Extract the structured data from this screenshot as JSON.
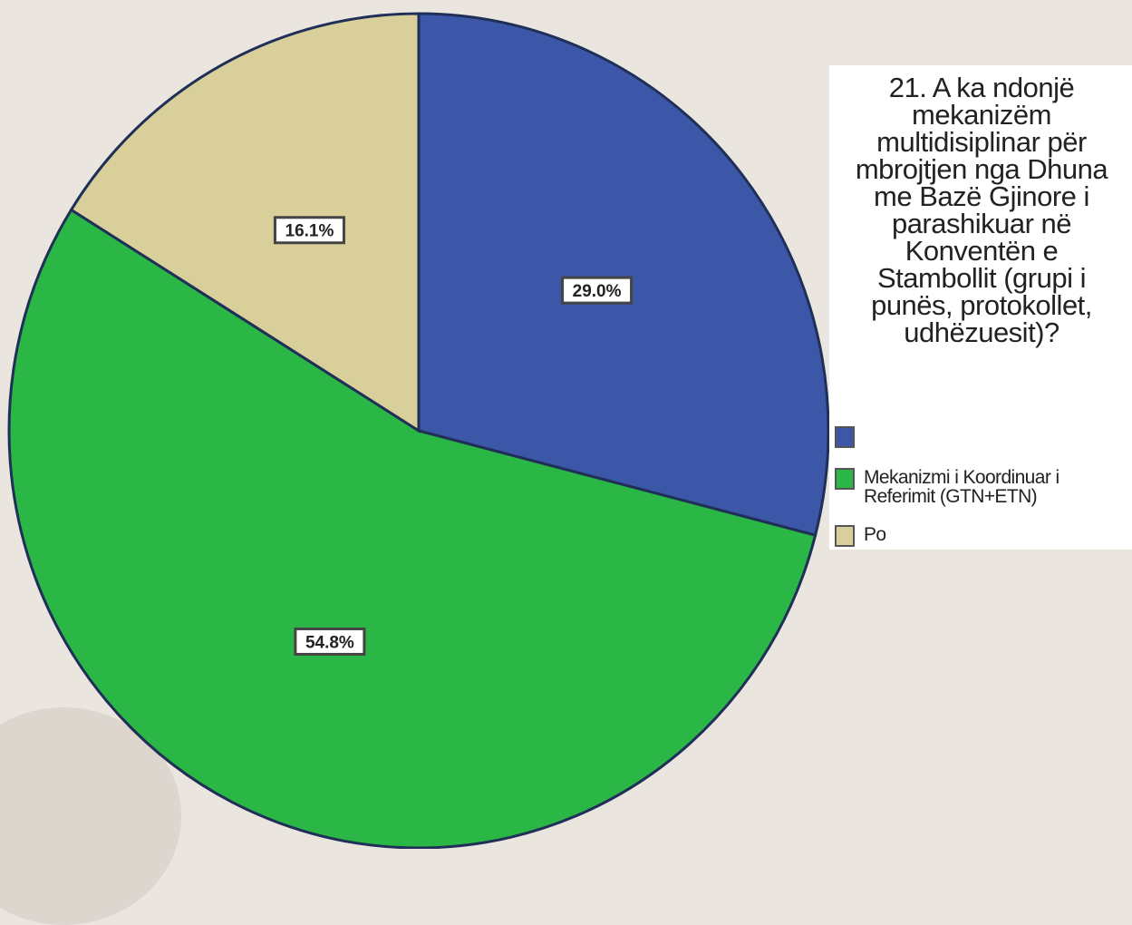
{
  "chart_data": {
    "type": "pie",
    "title": "21. A ka ndonjë mekanizëm multidisiplinar për mbrojtjen nga Dhuna me Bazë Gjinore i parashikuar në Konventën e Stambollit (grupi i punës, protokollet, udhëzuesit)?",
    "legend_position": "right",
    "slices": [
      {
        "label": "",
        "value": 29.0,
        "display": "29.0%",
        "color": "#3c57a8"
      },
      {
        "label": "Mekanizmi i Koordinuar i Referimit (GTN+ETN)",
        "value": 54.8,
        "display": "54.8%",
        "color": "#2bb746"
      },
      {
        "label": "Po",
        "value": 16.1,
        "display": "16.1%",
        "color": "#d9cf9a"
      }
    ]
  }
}
